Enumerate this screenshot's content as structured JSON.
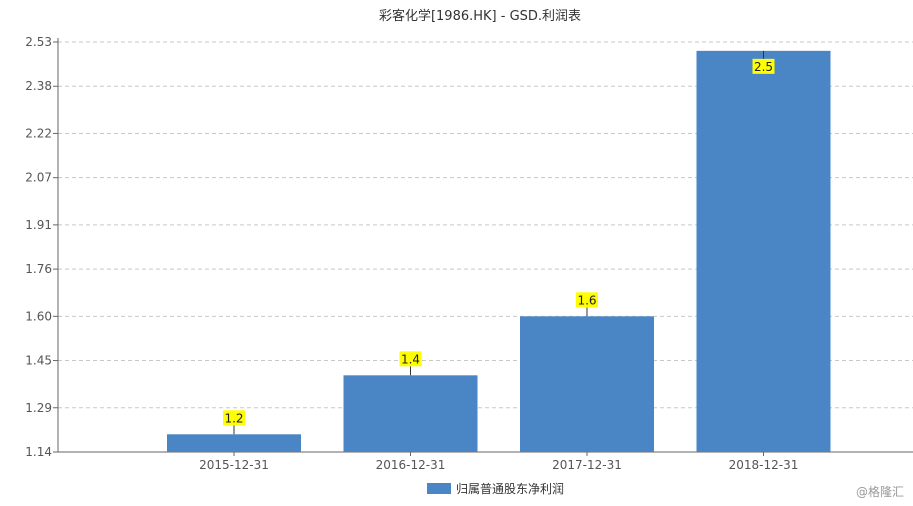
{
  "chart_data": {
    "type": "bar",
    "title": "彩客化学[1986.HK] - GSD.利润表",
    "categories": [
      "2015-12-31",
      "2016-12-31",
      "2017-12-31",
      "2018-12-31"
    ],
    "series": [
      {
        "name": "归属普通股东净利润",
        "values": [
          1.2,
          1.4,
          1.6,
          2.5
        ],
        "color": "#4a86c5"
      }
    ],
    "data_labels": [
      "1.2",
      "1.4",
      "1.6",
      "2.5"
    ],
    "y_ticks": [
      "1.14",
      "1.29",
      "1.45",
      "1.60",
      "1.76",
      "1.91",
      "2.07",
      "2.22",
      "2.38",
      "2.53"
    ],
    "ylim": [
      1.14,
      2.53
    ],
    "grid": true,
    "legend_position": "bottom-center",
    "label_bg_color": "#ffff00"
  },
  "watermark": "@格隆汇"
}
